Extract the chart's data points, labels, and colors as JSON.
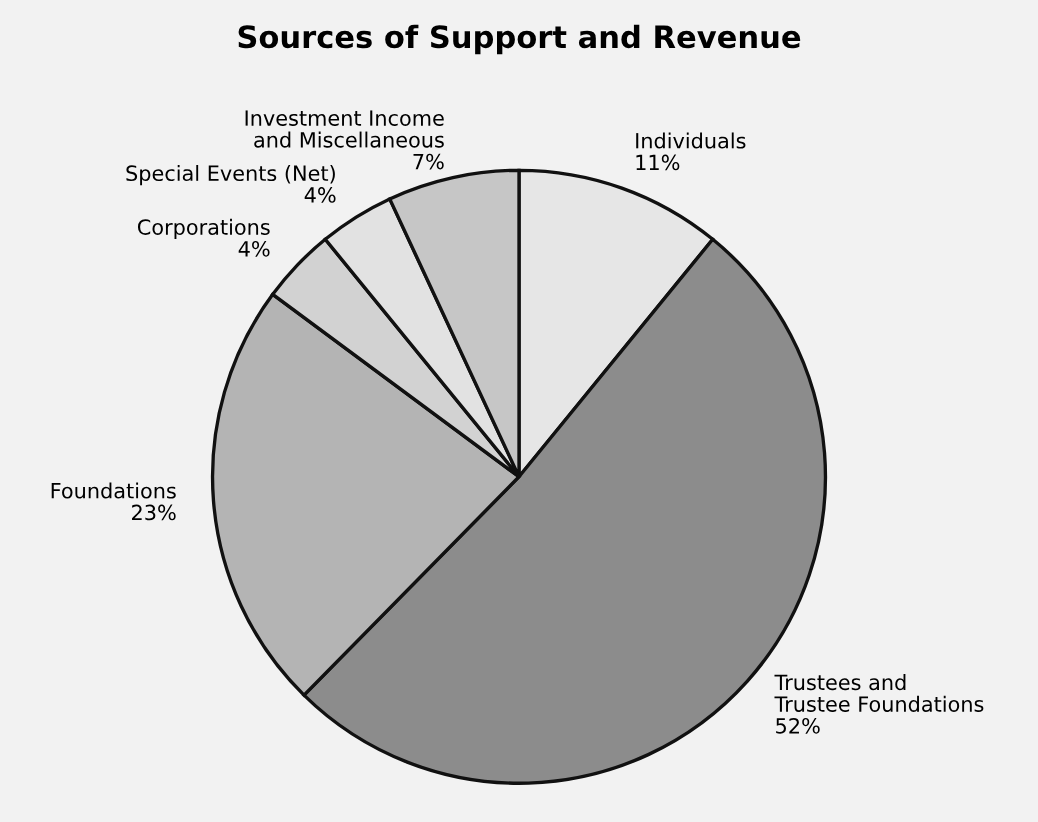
{
  "chart_data": {
    "type": "pie",
    "title": "Sources of Support and Revenue",
    "categories": [
      "Individuals",
      "Trustees and\nTrustee Foundations",
      "Foundations",
      "Corporations",
      "Special Events (Net)",
      "Investment Income\nand Miscellaneous"
    ],
    "values": [
      11,
      52,
      23,
      4,
      4,
      7
    ],
    "value_labels": [
      "11%",
      "52%",
      "23%",
      "4%",
      "4%",
      "7%"
    ],
    "colors": [
      "#e6e6e6",
      "#8c8c8c",
      "#b4b4b4",
      "#d2d2d2",
      "#e2e2e2",
      "#c6c6c6"
    ]
  }
}
